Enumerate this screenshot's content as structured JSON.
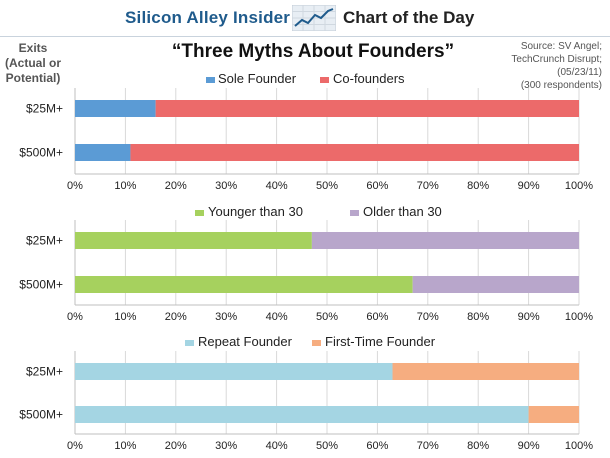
{
  "header": {
    "brand": "Silicon Alley Insider",
    "section": "Chart of the Day"
  },
  "left_label": [
    "Exits",
    "(Actual or",
    "Potential)"
  ],
  "source": [
    "Source: SV Angel;",
    "TechCrunch Disrupt;",
    "(05/23/11)",
    "(300 respondents)"
  ],
  "chart_data": [
    {
      "type": "bar",
      "orientation": "horizontal",
      "stacked": true,
      "percent_stacked": true,
      "title": "“Three Myths About Founders”",
      "categories": [
        "$25M+",
        "$500M+"
      ],
      "series": [
        {
          "name": "Sole Founder",
          "color": "#5b9bd5",
          "values": [
            16,
            11
          ]
        },
        {
          "name": "Co-founders",
          "color": "#ec6a6a",
          "values": [
            84,
            89
          ]
        }
      ],
      "xticks": [
        "0%",
        "10%",
        "20%",
        "30%",
        "40%",
        "50%",
        "60%",
        "70%",
        "80%",
        "90%",
        "100%"
      ],
      "xlim": [
        0,
        100
      ],
      "legend": "top"
    },
    {
      "type": "bar",
      "orientation": "horizontal",
      "stacked": true,
      "percent_stacked": true,
      "title": "",
      "categories": [
        "$25M+",
        "$500M+"
      ],
      "series": [
        {
          "name": "Younger than 30",
          "color": "#a6d15e",
          "values": [
            47,
            67
          ]
        },
        {
          "name": "Older than 30",
          "color": "#b8a6cb",
          "values": [
            53,
            33
          ]
        }
      ],
      "xticks": [
        "0%",
        "10%",
        "20%",
        "30%",
        "40%",
        "50%",
        "60%",
        "70%",
        "80%",
        "90%",
        "100%"
      ],
      "xlim": [
        0,
        100
      ],
      "legend": "top"
    },
    {
      "type": "bar",
      "orientation": "horizontal",
      "stacked": true,
      "percent_stacked": true,
      "title": "",
      "categories": [
        "$25M+",
        "$500M+"
      ],
      "series": [
        {
          "name": "Repeat Founder",
          "color": "#a4d5e3",
          "values": [
            63,
            90
          ]
        },
        {
          "name": "First-Time Founder",
          "color": "#f6ad80",
          "values": [
            37,
            10
          ]
        }
      ],
      "xticks": [
        "0%",
        "10%",
        "20%",
        "30%",
        "40%",
        "50%",
        "60%",
        "70%",
        "80%",
        "90%",
        "100%"
      ],
      "xlim": [
        0,
        100
      ],
      "legend": "top"
    }
  ]
}
